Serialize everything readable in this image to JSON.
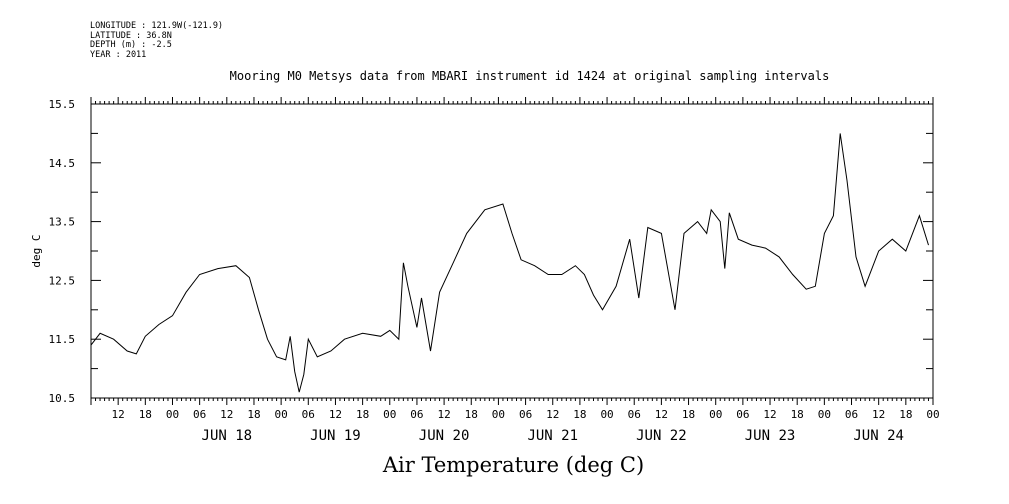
{
  "metadata": {
    "longitude": "LONGITUDE : 121.9W(-121.9)",
    "latitude": "LATITUDE : 36.8N",
    "depth": "DEPTH (m) : -2.5",
    "year": "YEAR : 2011"
  },
  "chart_data": {
    "type": "line",
    "title": "Mooring M0 Metsys data from MBARI instrument id 1424 at original sampling intervals",
    "xlabel": "Air Temperature (deg C)",
    "ylabel": "deg C",
    "ylim": [
      10.5,
      15.5
    ],
    "yticks": [
      "10.5",
      "11.5",
      "12.5",
      "13.5",
      "14.5",
      "15.5"
    ],
    "xlim_hours_label": "Jun 17 06:00 to Jun 25 00:00",
    "x_tick_labels": [
      "12",
      "18",
      "00",
      "06",
      "12",
      "18",
      "00",
      "06",
      "12",
      "18",
      "00",
      "06",
      "12",
      "18",
      "00",
      "06",
      "12",
      "18",
      "00",
      "06",
      "12",
      "18",
      "00",
      "06",
      "12",
      "18",
      "00",
      "06",
      "12",
      "18",
      "00"
    ],
    "day_labels": [
      "JUN 18",
      "JUN 19",
      "JUN 20",
      "JUN 21",
      "JUN 22",
      "JUN 23",
      "JUN 24"
    ],
    "grid": false,
    "series": [
      {
        "points": [
          [
            "Jun 17 06:00",
            11.4
          ],
          [
            "Jun 17 08:00",
            11.6
          ],
          [
            "Jun 17 11:00",
            11.5
          ],
          [
            "Jun 17 14:00",
            11.3
          ],
          [
            "Jun 17 16:00",
            11.25
          ],
          [
            "Jun 17 18:00",
            11.55
          ],
          [
            "Jun 17 21:00",
            11.75
          ],
          [
            "Jun 18 00:00",
            11.9
          ],
          [
            "Jun 18 03:00",
            12.3
          ],
          [
            "Jun 18 06:00",
            12.6
          ],
          [
            "Jun 18 10:00",
            12.7
          ],
          [
            "Jun 18 14:00",
            12.75
          ],
          [
            "Jun 18 17:00",
            12.55
          ],
          [
            "Jun 18 19:00",
            12.0
          ],
          [
            "Jun 18 21:00",
            11.5
          ],
          [
            "Jun 18 23:00",
            11.2
          ],
          [
            "Jun 19 01:00",
            11.15
          ],
          [
            "Jun 19 02:00",
            11.55
          ],
          [
            "Jun 19 03:00",
            10.95
          ],
          [
            "Jun 19 04:00",
            10.6
          ],
          [
            "Jun 19 05:00",
            10.9
          ],
          [
            "Jun 19 06:00",
            11.5
          ],
          [
            "Jun 19 08:00",
            11.2
          ],
          [
            "Jun 19 11:00",
            11.3
          ],
          [
            "Jun 19 14:00",
            11.5
          ],
          [
            "Jun 19 18:00",
            11.6
          ],
          [
            "Jun 19 22:00",
            11.55
          ],
          [
            "Jun 20 00:00",
            11.65
          ],
          [
            "Jun 20 02:00",
            11.5
          ],
          [
            "Jun 20 03:00",
            12.8
          ],
          [
            "Jun 20 04:00",
            12.4
          ],
          [
            "Jun 20 06:00",
            11.7
          ],
          [
            "Jun 20 07:00",
            12.2
          ],
          [
            "Jun 20 09:00",
            11.3
          ],
          [
            "Jun 20 11:00",
            12.3
          ],
          [
            "Jun 20 14:00",
            12.8
          ],
          [
            "Jun 20 17:00",
            13.3
          ],
          [
            "Jun 20 21:00",
            13.7
          ],
          [
            "Jun 21 01:00",
            13.8
          ],
          [
            "Jun 21 03:00",
            13.3
          ],
          [
            "Jun 21 05:00",
            12.85
          ],
          [
            "Jun 21 08:00",
            12.75
          ],
          [
            "Jun 21 11:00",
            12.6
          ],
          [
            "Jun 21 14:00",
            12.6
          ],
          [
            "Jun 21 17:00",
            12.75
          ],
          [
            "Jun 21 19:00",
            12.6
          ],
          [
            "Jun 21 21:00",
            12.25
          ],
          [
            "Jun 21 23:00",
            12.0
          ],
          [
            "Jun 22 02:00",
            12.4
          ],
          [
            "Jun 22 05:00",
            13.2
          ],
          [
            "Jun 22 07:00",
            12.2
          ],
          [
            "Jun 22 09:00",
            13.4
          ],
          [
            "Jun 22 12:00",
            13.3
          ],
          [
            "Jun 22 15:00",
            12.0
          ],
          [
            "Jun 22 17:00",
            13.3
          ],
          [
            "Jun 22 20:00",
            13.5
          ],
          [
            "Jun 22 22:00",
            13.3
          ],
          [
            "Jun 22 23:00",
            13.7
          ],
          [
            "Jun 23 01:00",
            13.5
          ],
          [
            "Jun 23 02:00",
            12.7
          ],
          [
            "Jun 23 03:00",
            13.65
          ],
          [
            "Jun 23 05:00",
            13.2
          ],
          [
            "Jun 23 08:00",
            13.1
          ],
          [
            "Jun 23 11:00",
            13.05
          ],
          [
            "Jun 23 14:00",
            12.9
          ],
          [
            "Jun 23 17:00",
            12.6
          ],
          [
            "Jun 23 20:00",
            12.35
          ],
          [
            "Jun 23 22:00",
            12.4
          ],
          [
            "Jun 24 00:00",
            13.3
          ],
          [
            "Jun 24 02:00",
            13.6
          ],
          [
            "Jun 24 03:30",
            15.0
          ],
          [
            "Jun 24 05:00",
            14.2
          ],
          [
            "Jun 24 07:00",
            12.9
          ],
          [
            "Jun 24 09:00",
            12.4
          ],
          [
            "Jun 24 12:00",
            13.0
          ],
          [
            "Jun 24 15:00",
            13.2
          ],
          [
            "Jun 24 18:00",
            13.0
          ],
          [
            "Jun 24 21:00",
            13.6
          ],
          [
            "Jun 24 23:00",
            13.1
          ]
        ]
      }
    ]
  }
}
